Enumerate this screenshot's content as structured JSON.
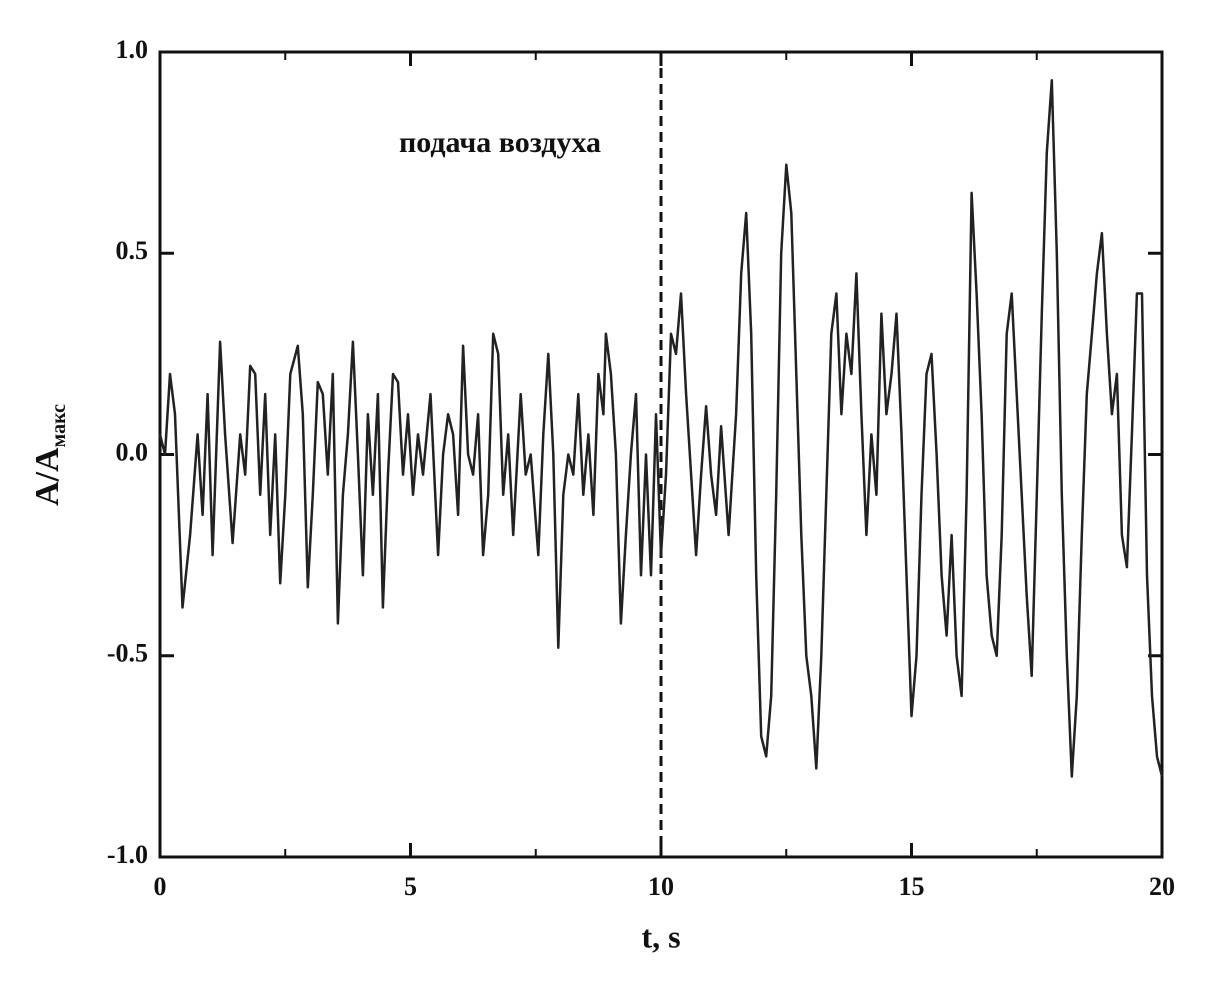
{
  "chart_data": {
    "type": "line",
    "xlabel": "t, s",
    "ylabel": {
      "main": "A/A",
      "sub": "макс"
    },
    "annotation": "подача воздуха",
    "marker_x": 10,
    "xlim": [
      0,
      20
    ],
    "xticks": [
      0,
      5,
      10,
      15,
      20
    ],
    "xminorticks": [
      2.5,
      7.5,
      12.5,
      17.5
    ],
    "ylim": [
      -1,
      1
    ],
    "yticks": [
      {
        "value": -1,
        "label": "-1.0"
      },
      {
        "value": -0.5,
        "label": "-0.5"
      },
      {
        "value": 0,
        "label": "0.0"
      },
      {
        "value": 0.5,
        "label": "0.5"
      },
      {
        "value": 1,
        "label": "1.0"
      }
    ],
    "grid": false,
    "series": [
      {
        "color": "#222222",
        "x": [
          0,
          0.1,
          0.2,
          0.3,
          0.45,
          0.6,
          0.75,
          0.85,
          0.95,
          1.05,
          1.2,
          1.3,
          1.45,
          1.6,
          1.7,
          1.8,
          1.9,
          2.0,
          2.1,
          2.2,
          2.3,
          2.4,
          2.5,
          2.6,
          2.75,
          2.85,
          2.95,
          3.05,
          3.15,
          3.25,
          3.35,
          3.45,
          3.55,
          3.65,
          3.75,
          3.85,
          3.95,
          4.05,
          4.15,
          4.25,
          4.35,
          4.45,
          4.55,
          4.65,
          4.75,
          4.85,
          4.95,
          5.05,
          5.15,
          5.25,
          5.4,
          5.55,
          5.65,
          5.75,
          5.85,
          5.95,
          6.05,
          6.15,
          6.25,
          6.35,
          6.45,
          6.55,
          6.65,
          6.75,
          6.85,
          6.95,
          7.05,
          7.2,
          7.3,
          7.4,
          7.55,
          7.65,
          7.75,
          7.85,
          7.95,
          8.05,
          8.15,
          8.25,
          8.35,
          8.45,
          8.55,
          8.65,
          8.75,
          8.85,
          8.9,
          9.0,
          9.1,
          9.2,
          9.3,
          9.4,
          9.5,
          9.6,
          9.7,
          9.8,
          9.9,
          10.0,
          10.1,
          10.2,
          10.3,
          10.4,
          10.5,
          10.6,
          10.7,
          10.8,
          10.9,
          11.0,
          11.1,
          11.2,
          11.35,
          11.5,
          11.6,
          11.7,
          11.8,
          11.9,
          12.0,
          12.1,
          12.2,
          12.3,
          12.4,
          12.5,
          12.6,
          12.7,
          12.8,
          12.9,
          13.0,
          13.1,
          13.2,
          13.3,
          13.4,
          13.5,
          13.6,
          13.7,
          13.8,
          13.9,
          14.0,
          14.1,
          14.2,
          14.3,
          14.4,
          14.5,
          14.6,
          14.7,
          14.8,
          14.9,
          15.0,
          15.1,
          15.2,
          15.3,
          15.4,
          15.5,
          15.6,
          15.7,
          15.8,
          15.9,
          16.0,
          16.1,
          16.2,
          16.3,
          16.4,
          16.5,
          16.6,
          16.7,
          16.8,
          16.9,
          17.0,
          17.1,
          17.2,
          17.3,
          17.4,
          17.5,
          17.6,
          17.7,
          17.8,
          17.9,
          18.0,
          18.1,
          18.2,
          18.3,
          18.4,
          18.5,
          18.6,
          18.7,
          18.8,
          18.9,
          19.0,
          19.1,
          19.2,
          19.3,
          19.4,
          19.5,
          19.6,
          19.7,
          19.8,
          19.9,
          20.0
        ],
        "values": [
          0.05,
          0.0,
          0.2,
          0.1,
          -0.38,
          -0.2,
          0.05,
          -0.15,
          0.15,
          -0.25,
          0.28,
          0.05,
          -0.22,
          0.05,
          -0.05,
          0.22,
          0.2,
          -0.1,
          0.15,
          -0.2,
          0.05,
          -0.32,
          -0.1,
          0.2,
          0.27,
          0.1,
          -0.33,
          -0.1,
          0.18,
          0.15,
          -0.05,
          0.2,
          -0.42,
          -0.1,
          0.05,
          0.28,
          0.0,
          -0.3,
          0.1,
          -0.1,
          0.15,
          -0.38,
          -0.05,
          0.2,
          0.18,
          -0.05,
          0.1,
          -0.1,
          0.05,
          -0.05,
          0.15,
          -0.25,
          0.0,
          0.1,
          0.05,
          -0.15,
          0.27,
          0.0,
          -0.05,
          0.1,
          -0.25,
          -0.1,
          0.3,
          0.25,
          -0.1,
          0.05,
          -0.2,
          0.15,
          -0.05,
          0.0,
          -0.25,
          0.05,
          0.25,
          0.0,
          -0.48,
          -0.1,
          0.0,
          -0.05,
          0.15,
          -0.1,
          0.05,
          -0.15,
          0.2,
          0.1,
          0.3,
          0.2,
          0.0,
          -0.42,
          -0.2,
          0.0,
          0.15,
          -0.3,
          0.0,
          -0.3,
          0.1,
          -0.25,
          -0.05,
          0.3,
          0.25,
          0.4,
          0.15,
          -0.05,
          -0.25,
          -0.05,
          0.12,
          -0.05,
          -0.15,
          0.07,
          -0.2,
          0.1,
          0.45,
          0.6,
          0.3,
          -0.3,
          -0.7,
          -0.75,
          -0.6,
          -0.1,
          0.5,
          0.72,
          0.6,
          0.2,
          -0.2,
          -0.5,
          -0.6,
          -0.78,
          -0.5,
          -0.1,
          0.3,
          0.4,
          0.1,
          0.3,
          0.2,
          0.45,
          0.1,
          -0.2,
          0.05,
          -0.1,
          0.35,
          0.1,
          0.2,
          0.35,
          0.05,
          -0.3,
          -0.65,
          -0.5,
          -0.1,
          0.2,
          0.25,
          0.0,
          -0.3,
          -0.45,
          -0.2,
          -0.5,
          -0.6,
          -0.1,
          0.65,
          0.4,
          0.1,
          -0.3,
          -0.45,
          -0.5,
          -0.2,
          0.3,
          0.4,
          0.15,
          -0.1,
          -0.35,
          -0.55,
          -0.1,
          0.35,
          0.75,
          0.93,
          0.5,
          -0.1,
          -0.5,
          -0.8,
          -0.6,
          -0.2,
          0.15,
          0.3,
          0.45,
          0.55,
          0.3,
          0.1,
          0.2,
          -0.2,
          -0.28,
          0.05,
          0.4,
          0.4,
          -0.3,
          -0.6,
          -0.75,
          -0.8
        ]
      }
    ]
  }
}
